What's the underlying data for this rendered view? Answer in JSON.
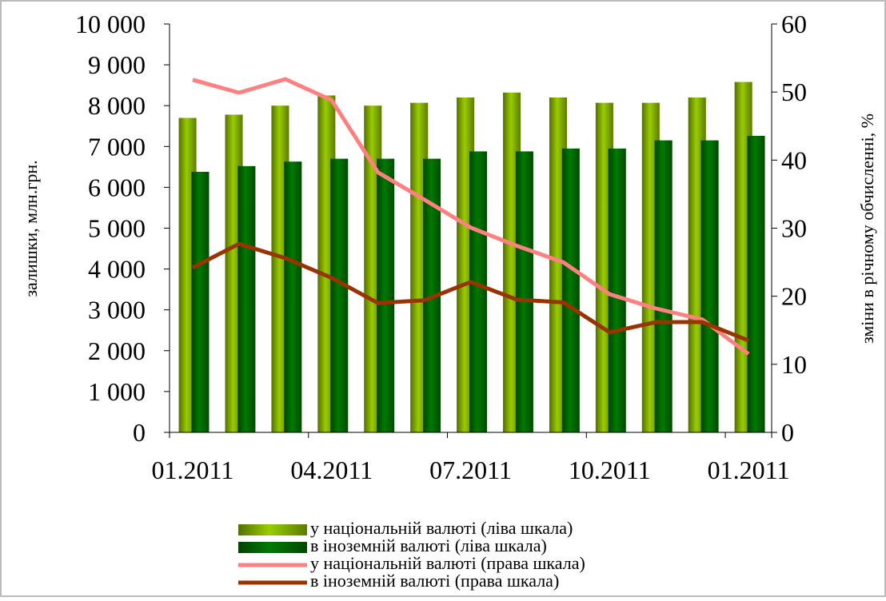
{
  "chart_data": {
    "type": "bar-line",
    "y_label": "залишки, млн.грн.",
    "y2_label": "зміни в річному обчисленні, %",
    "categories": [
      "01.2011",
      null,
      null,
      "04.2011",
      null,
      null,
      "07.2011",
      null,
      null,
      "10.2011",
      null,
      null,
      "01.2011"
    ],
    "ylim": [
      0,
      10000
    ],
    "yticks": [
      0,
      {
        "value": 1000,
        "label": "1 000"
      },
      {
        "value": 2000,
        "label": "2 000"
      },
      {
        "value": 3000,
        "label": "3 000"
      },
      {
        "value": 4000,
        "label": "4 000"
      },
      {
        "value": 5000,
        "label": "5 000"
      },
      {
        "value": 6000,
        "label": "6 000"
      },
      {
        "value": 7000,
        "label": "7 000"
      },
      {
        "value": 8000,
        "label": "8 000"
      },
      {
        "value": 9000,
        "label": "9 000"
      },
      {
        "value": 10000,
        "label": "10 000"
      }
    ],
    "y2lim": [
      0,
      60
    ],
    "y2ticks": [
      0,
      10,
      20,
      30,
      40,
      50,
      60
    ],
    "series": [
      {
        "name": "у національній  валюті (ліва шкала)",
        "type": "bar",
        "color": "#99cc00",
        "values": [
          7700,
          7780,
          8000,
          8250,
          8000,
          8070,
          8200,
          8320,
          8200,
          8070,
          8070,
          8200,
          8580
        ]
      },
      {
        "name": "в іноземній  валюті (ліва шкала)",
        "type": "bar",
        "color": "#007a00",
        "values": [
          6380,
          6520,
          6630,
          6700,
          6700,
          6700,
          6880,
          6880,
          6950,
          6950,
          7150,
          7150,
          7260
        ]
      },
      {
        "name": "у національній  валюті (права шкала)",
        "type": "line",
        "axis": "y2",
        "color": "#ff8080",
        "values": [
          51.8,
          49.9,
          51.9,
          48.8,
          38.2,
          34.2,
          30.1,
          27.4,
          25.0,
          20.3,
          18.2,
          16.6,
          11.5
        ]
      },
      {
        "name": "в іноземній  валюті (права шкала)",
        "type": "line",
        "axis": "y2",
        "color": "#993300",
        "values": [
          24.2,
          27.7,
          25.6,
          22.7,
          19.0,
          19.4,
          22.1,
          19.5,
          19.1,
          14.7,
          16.2,
          16.2,
          13.5
        ]
      }
    ]
  }
}
